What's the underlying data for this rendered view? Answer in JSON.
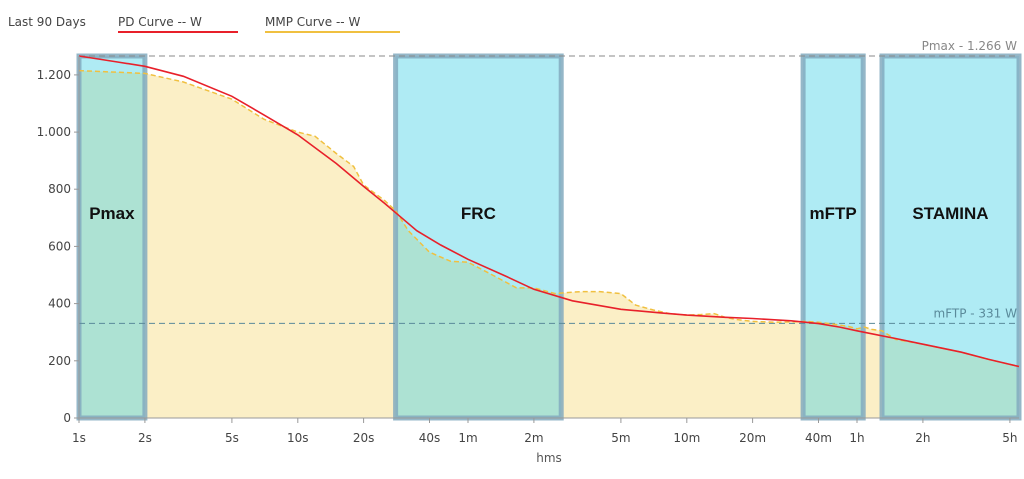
{
  "header": {
    "period_label": "Last 90 Days",
    "legend": [
      {
        "label": "PD Curve  -- W",
        "color": "#e8202a"
      },
      {
        "label": "MMP Curve  -- W",
        "color": "#f0c040"
      }
    ]
  },
  "chart_data": {
    "type": "area",
    "xlabel": "hms",
    "ylabel": "",
    "x_scale": "log",
    "xlim": [
      1,
      19800
    ],
    "ylim": [
      0,
      1266
    ],
    "grid": false,
    "x_ticks": [
      {
        "label": "1s",
        "value": 1
      },
      {
        "label": "2s",
        "value": 2
      },
      {
        "label": "5s",
        "value": 5
      },
      {
        "label": "10s",
        "value": 10
      },
      {
        "label": "20s",
        "value": 20
      },
      {
        "label": "40s",
        "value": 40
      },
      {
        "label": "1m",
        "value": 60
      },
      {
        "label": "2m",
        "value": 120
      },
      {
        "label": "5m",
        "value": 300
      },
      {
        "label": "10m",
        "value": 600
      },
      {
        "label": "20m",
        "value": 1200
      },
      {
        "label": "40m",
        "value": 2400
      },
      {
        "label": "1h",
        "value": 3600
      },
      {
        "label": "2h",
        "value": 7200
      },
      {
        "label": "5h",
        "value": 18000
      }
    ],
    "y_ticks": [
      {
        "label": "0",
        "value": 0
      },
      {
        "label": "200",
        "value": 200
      },
      {
        "label": "400",
        "value": 400
      },
      {
        "label": "600",
        "value": 600
      },
      {
        "label": "800",
        "value": 800
      },
      {
        "label": "1.000",
        "value": 1000
      },
      {
        "label": "1.200",
        "value": 1200
      }
    ],
    "reference_lines": [
      {
        "label": "Pmax - 1.266 W",
        "value": 1266,
        "color": "#888888"
      },
      {
        "label": "mFTP - 331 W",
        "value": 331,
        "color": "#5a8a9a"
      }
    ],
    "zones": [
      {
        "label": "Pmax",
        "x_start": 1,
        "x_end": 2
      },
      {
        "label": "FRC",
        "x_start": 28,
        "x_end": 160
      },
      {
        "label": "mFTP",
        "x_start": 2040,
        "x_end": 3840
      },
      {
        "label": "STAMINA",
        "x_start": 4680,
        "x_end": 19800
      }
    ],
    "series": [
      {
        "name": "PD Curve",
        "color": "#e8202a",
        "style": "solid",
        "x": [
          1,
          1.5,
          2,
          3,
          5,
          7,
          10,
          15,
          20,
          25,
          28,
          35,
          45,
          60,
          90,
          120,
          180,
          300,
          450,
          600,
          900,
          1200,
          1800,
          2400,
          3000,
          3600,
          5400,
          7200,
          10800,
          14400,
          19800
        ],
        "y": [
          1266,
          1245,
          1230,
          1195,
          1125,
          1060,
          990,
          890,
          810,
          750,
          718,
          655,
          605,
          555,
          495,
          450,
          410,
          380,
          368,
          360,
          352,
          348,
          340,
          330,
          318,
          305,
          278,
          258,
          230,
          205,
          180
        ]
      },
      {
        "name": "MMP Curve",
        "color": "#f0c040",
        "style": "dashed",
        "x": [
          1,
          2,
          3,
          5,
          7,
          10,
          12,
          15,
          18,
          20,
          25,
          28,
          32,
          40,
          50,
          60,
          80,
          100,
          120,
          150,
          180,
          200,
          240,
          300,
          350,
          420,
          500,
          600,
          700,
          800,
          900,
          1000,
          1200,
          1500,
          1800,
          2100,
          2400,
          2700,
          3000,
          3300,
          3600,
          3900,
          4200,
          4680,
          5400,
          7200,
          10800,
          14400,
          19800
        ],
        "y": [
          1215,
          1205,
          1175,
          1115,
          1045,
          1000,
          985,
          925,
          880,
          815,
          760,
          725,
          655,
          580,
          548,
          545,
          495,
          455,
          455,
          435,
          440,
          442,
          442,
          435,
          395,
          378,
          365,
          360,
          362,
          365,
          352,
          345,
          338,
          335,
          336,
          338,
          335,
          330,
          325,
          320,
          312,
          318,
          310,
          305,
          275,
          258,
          230,
          205,
          180
        ]
      }
    ]
  }
}
